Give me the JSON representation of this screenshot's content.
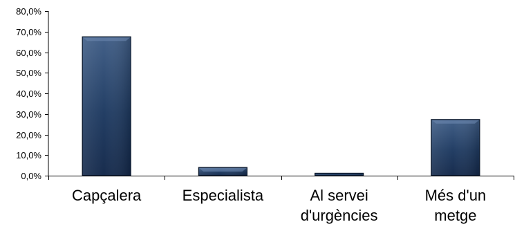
{
  "chart_data": {
    "type": "bar",
    "title": "",
    "xlabel": "",
    "ylabel": "",
    "categories": [
      [
        "Capçalera"
      ],
      [
        "Especialista"
      ],
      [
        "Al servei",
        "d'urgències"
      ],
      [
        "Més d'un",
        "metge"
      ]
    ],
    "values": [
      67.5,
      4.0,
      1.2,
      27.3
    ],
    "ylim": [
      0,
      80
    ],
    "y_tick_values": [
      0,
      10,
      20,
      30,
      40,
      50,
      60,
      70,
      80
    ],
    "y_tick_labels": [
      "0,0%",
      "10,0%",
      "20,0%",
      "30,0%",
      "40,0%",
      "50,0%",
      "60,0%",
      "70,0%",
      "80,0%"
    ],
    "grid": false,
    "legend": "none",
    "colors": {
      "bar_top": "#3f5d86",
      "bar_mid": "#1e3a61",
      "bar_bottom": "#13284a",
      "bar_edge": "#0a1526",
      "axis": "#000000"
    }
  }
}
